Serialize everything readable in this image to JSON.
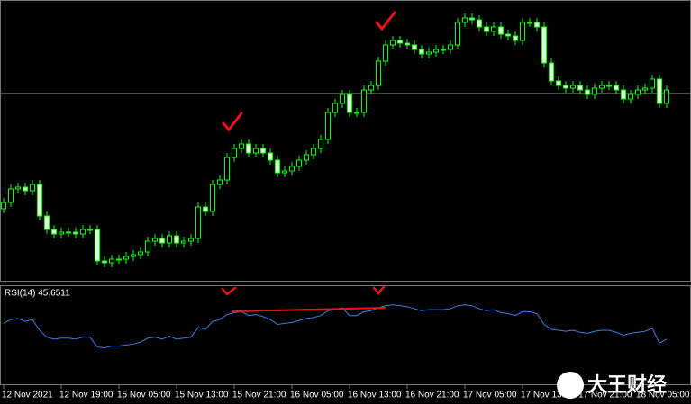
{
  "chart_data": [
    {
      "type": "candlestick",
      "categories": [
        "12 Nov 2021",
        null,
        null,
        null,
        null,
        null,
        null,
        null,
        "12 Nov 19:00",
        null,
        null,
        null,
        null,
        null,
        null,
        null,
        "15 Nov 05:00",
        null,
        null,
        null,
        null,
        null,
        null,
        null,
        "15 Nov 13:00",
        null,
        null,
        null,
        null,
        null,
        null,
        null,
        "15 Nov 21:00",
        null,
        null,
        null,
        null,
        null,
        null,
        null,
        "16 Nov 05:00",
        null,
        null,
        null,
        null,
        null,
        null,
        null,
        "16 Nov 13:00",
        null,
        null,
        null,
        null,
        null,
        null,
        null,
        "16 Nov 21:00",
        null,
        null,
        null,
        null,
        null,
        null,
        null,
        "17 Nov 05:00",
        null,
        null,
        null,
        null,
        null,
        null,
        null,
        "17 Nov 13:00",
        null,
        null,
        null,
        null,
        null,
        null,
        null,
        "17 Nov 21:00",
        null,
        null,
        null,
        null,
        null,
        null,
        null,
        "18 Nov 05:00",
        null,
        null,
        null,
        null
      ],
      "open": [
        80,
        87,
        102,
        104,
        100,
        107,
        72,
        57,
        52,
        54,
        54,
        52,
        57,
        57,
        22,
        20,
        24,
        24,
        27,
        29,
        32,
        44,
        47,
        42,
        50,
        42,
        44,
        47,
        82,
        77,
        107,
        112,
        137,
        147,
        152,
        142,
        147,
        142,
        134,
        120,
        122,
        127,
        134,
        140,
        147,
        157,
        187,
        197,
        207,
        187,
        187,
        212,
        217,
        244,
        262,
        267,
        264,
        262,
        257,
        252,
        254,
        257,
        257,
        262,
        287,
        292,
        290,
        282,
        277,
        282,
        274,
        272,
        267,
        287,
        287,
        282,
        242,
        222,
        217,
        214,
        217,
        212,
        207,
        214,
        217,
        217,
        212,
        202,
        207,
        212,
        214,
        224,
        197
      ],
      "high": [
        92,
        107,
        109,
        109,
        112,
        112,
        77,
        62,
        59,
        59,
        59,
        62,
        62,
        62,
        27,
        29,
        29,
        32,
        34,
        37,
        49,
        52,
        52,
        55,
        55,
        49,
        52,
        87,
        87,
        112,
        117,
        142,
        152,
        157,
        157,
        152,
        152,
        147,
        139,
        127,
        132,
        139,
        145,
        152,
        162,
        192,
        202,
        212,
        212,
        192,
        217,
        222,
        249,
        267,
        272,
        272,
        269,
        267,
        262,
        259,
        262,
        262,
        267,
        292,
        297,
        297,
        295,
        287,
        287,
        287,
        279,
        277,
        292,
        292,
        292,
        287,
        247,
        227,
        222,
        222,
        222,
        217,
        219,
        222,
        222,
        222,
        217,
        212,
        217,
        219,
        229,
        229,
        217
      ],
      "low": [
        75,
        82,
        97,
        95,
        95,
        67,
        52,
        47,
        47,
        49,
        47,
        47,
        52,
        17,
        15,
        15,
        19,
        19,
        22,
        24,
        27,
        39,
        37,
        37,
        37,
        37,
        39,
        42,
        72,
        72,
        102,
        107,
        132,
        142,
        137,
        137,
        137,
        129,
        115,
        115,
        117,
        122,
        129,
        135,
        142,
        152,
        182,
        192,
        182,
        182,
        182,
        207,
        212,
        239,
        257,
        259,
        257,
        252,
        247,
        247,
        249,
        252,
        252,
        257,
        282,
        285,
        277,
        272,
        272,
        269,
        267,
        262,
        262,
        282,
        277,
        237,
        217,
        212,
        209,
        209,
        207,
        202,
        202,
        209,
        212,
        207,
        197,
        197,
        202,
        207,
        209,
        192,
        192
      ],
      "close": [
        87,
        102,
        104,
        100,
        107,
        72,
        57,
        52,
        54,
        54,
        52,
        57,
        57,
        22,
        20,
        24,
        24,
        27,
        29,
        32,
        44,
        47,
        42,
        50,
        42,
        44,
        47,
        82,
        77,
        107,
        112,
        137,
        147,
        152,
        142,
        147,
        142,
        134,
        120,
        122,
        127,
        134,
        140,
        147,
        157,
        187,
        197,
        207,
        187,
        187,
        212,
        217,
        244,
        262,
        267,
        264,
        262,
        257,
        252,
        254,
        257,
        257,
        262,
        287,
        292,
        290,
        282,
        277,
        282,
        274,
        272,
        267,
        287,
        287,
        282,
        242,
        222,
        217,
        214,
        217,
        212,
        207,
        214,
        217,
        217,
        212,
        202,
        207,
        212,
        214,
        224,
        197,
        212
      ],
      "ylim": [
        0,
        312
      ],
      "level": 208,
      "up_color": "#000000",
      "down_color": "#d8ffd0",
      "wick_color": "#00ff00",
      "level_color": "#8c9aa6"
    },
    {
      "type": "line",
      "title": "RSI(14) 45.6511",
      "color": "#3f7fe0",
      "ylim": [
        0,
        100
      ],
      "values": [
        62,
        66,
        67,
        64,
        66,
        55,
        48,
        46,
        47,
        47,
        46,
        48,
        48,
        38,
        37,
        39,
        39,
        40,
        41,
        43,
        47,
        48,
        46,
        49,
        46,
        47,
        48,
        58,
        56,
        64,
        66,
        71,
        73,
        74,
        70,
        71,
        69,
        66,
        61,
        62,
        63,
        65,
        67,
        68,
        70,
        75,
        76,
        78,
        70,
        70,
        74,
        75,
        78,
        80,
        81,
        80,
        79,
        77,
        75,
        76,
        76,
        76,
        77,
        80,
        81,
        80,
        77,
        75,
        76,
        73,
        72,
        70,
        74,
        74,
        72,
        61,
        56,
        55,
        54,
        55,
        53,
        52,
        54,
        55,
        55,
        53,
        50,
        52,
        53,
        54,
        57,
        42,
        46
      ]
    }
  ],
  "watermark": "大王财经"
}
